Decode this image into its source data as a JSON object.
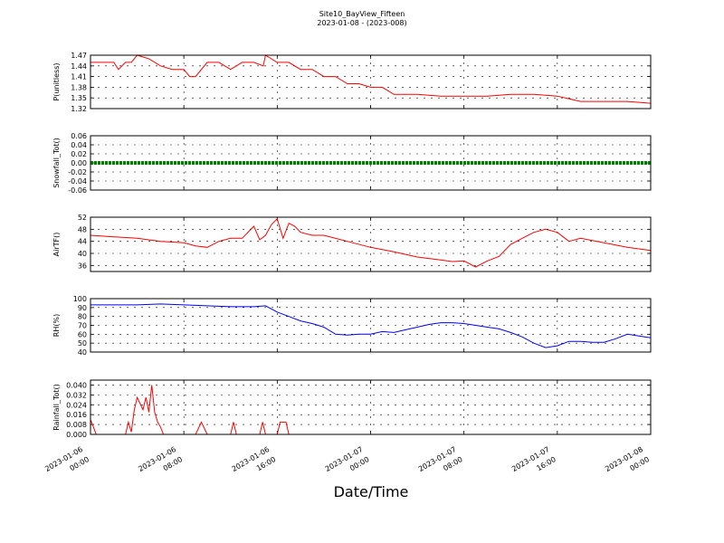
{
  "chart_data": {
    "title": "Site10_BayView_Fifteen",
    "subtitle": "2023-01-08 - (2023-008)",
    "xlabel": "Date/Time",
    "x_ticks": [
      "2023-01-06 00:00",
      "2023-01-06 08:00",
      "2023-01-06 16:00",
      "2023-01-07 00:00",
      "2023-01-07 08:00",
      "2023-01-07 16:00",
      "2023-01-08 00:00"
    ],
    "x_tick_lines": [
      [
        "2023-01-06",
        "00:00"
      ],
      [
        "2023-01-06",
        "08:00"
      ],
      [
        "2023-01-06",
        "16:00"
      ],
      [
        "2023-01-07",
        "00:00"
      ],
      [
        "2023-01-07",
        "08:00"
      ],
      [
        "2023-01-07",
        "16:00"
      ],
      [
        "2023-01-08",
        "00:00"
      ]
    ],
    "x_range_hours": [
      0,
      48
    ],
    "x_hours": [
      0,
      2,
      4,
      6,
      8,
      10,
      12,
      14,
      16,
      18,
      20,
      22,
      24,
      26,
      28,
      30,
      32,
      34,
      36,
      38,
      40,
      42,
      44,
      46,
      48
    ],
    "grid": true,
    "panels": [
      {
        "type": "line",
        "ylabel": "P(unitless)",
        "color": "#ff0000",
        "ylim": [
          1.32,
          1.47
        ],
        "yticks": [
          "1.32",
          "1.35",
          "1.38",
          "1.41",
          "1.44",
          "1.47"
        ],
        "ytick_values": [
          1.32,
          1.35,
          1.38,
          1.41,
          1.44,
          1.47
        ],
        "series": [
          {
            "x": [
              0,
              1,
              2,
              2.4,
              3,
              3.5,
              4,
              5,
              6,
              7,
              8,
              8.5,
              9,
              10,
              11,
              12,
              13,
              14,
              14.8,
              15,
              16,
              17,
              18,
              19,
              20,
              21,
              22,
              23,
              24,
              25,
              26,
              27,
              28,
              30,
              32,
              34,
              36,
              38,
              40,
              42,
              44,
              46,
              48
            ],
            "y": [
              1.45,
              1.45,
              1.45,
              1.43,
              1.45,
              1.45,
              1.47,
              1.46,
              1.44,
              1.43,
              1.43,
              1.41,
              1.41,
              1.45,
              1.45,
              1.43,
              1.45,
              1.45,
              1.44,
              1.47,
              1.45,
              1.45,
              1.43,
              1.43,
              1.41,
              1.41,
              1.39,
              1.39,
              1.38,
              1.38,
              1.36,
              1.36,
              1.36,
              1.355,
              1.355,
              1.355,
              1.36,
              1.36,
              1.355,
              1.34,
              1.34,
              1.34,
              1.335
            ]
          }
        ]
      },
      {
        "type": "line",
        "ylabel": "Snowfall_Tot()",
        "color": "#008000",
        "ylim": [
          -0.06,
          0.06
        ],
        "yticks": [
          "-0.06",
          "-0.04",
          "-0.02",
          "0.00",
          "0.02",
          "0.04",
          "0.06"
        ],
        "ytick_values": [
          -0.06,
          -0.04,
          -0.02,
          0.0,
          0.02,
          0.04,
          0.06
        ],
        "series": [
          {
            "x": [
              0,
              48
            ],
            "y": [
              0,
              0
            ]
          }
        ]
      },
      {
        "type": "line",
        "ylabel": "AirTF()",
        "color": "#ff0000",
        "ylim": [
          34,
          52
        ],
        "yticks": [
          "36",
          "40",
          "44",
          "48",
          "52"
        ],
        "ytick_values": [
          36,
          40,
          44,
          48,
          52
        ],
        "series": [
          {
            "x": [
              0,
              2,
              4,
              6,
              8,
              9,
              10,
              11,
              12,
              13,
              14,
              14.5,
              15,
              15.5,
              16,
              16.5,
              17,
              17.5,
              18,
              19,
              20,
              22,
              24,
              26,
              28,
              30,
              31,
              32,
              33,
              34,
              35,
              36,
              37,
              38,
              39,
              40,
              41,
              42,
              44,
              46,
              48
            ],
            "y": [
              46,
              45.5,
              45,
              44,
              43.5,
              42.5,
              42,
              44,
              45,
              45,
              49,
              44.5,
              46,
              49.5,
              51.5,
              45,
              50,
              49,
              47,
              46,
              46,
              44,
              42,
              40.5,
              38.8,
              37.8,
              37.3,
              37.5,
              35.5,
              37.5,
              39,
              43,
              45,
              47,
              48,
              47,
              44,
              45,
              43.5,
              42,
              41
            ]
          }
        ]
      },
      {
        "type": "line",
        "ylabel": "RH(%)",
        "color": "#0000ff",
        "ylim": [
          40,
          100
        ],
        "yticks": [
          "40",
          "50",
          "60",
          "70",
          "80",
          "90",
          "100"
        ],
        "ytick_values": [
          40,
          50,
          60,
          70,
          80,
          90,
          100
        ],
        "series": [
          {
            "x": [
              0,
              2,
              4,
              6,
              8,
              10,
              12,
              14,
              15,
              16,
              17,
              18,
              19,
              20,
              21,
              22,
              23,
              24,
              25,
              26,
              27,
              28,
              29,
              30,
              31,
              32,
              33,
              34,
              35,
              36,
              37,
              38,
              39,
              40,
              41,
              42,
              43,
              44,
              45,
              46,
              47,
              48
            ],
            "y": [
              93,
              93,
              93,
              94,
              93,
              92,
              91,
              91,
              92,
              85,
              80,
              75,
              72,
              68,
              60,
              59,
              60,
              60,
              63,
              62,
              65,
              68,
              71,
              73,
              73,
              72,
              70,
              68,
              66,
              62,
              57,
              50,
              45,
              47,
              52,
              52,
              51,
              51,
              55,
              60,
              58,
              56
            ]
          }
        ]
      },
      {
        "type": "line",
        "ylabel": "Rainfall_Tot()",
        "color": "#ff0000",
        "ylim": [
          0,
          0.044
        ],
        "yticks": [
          "0.000",
          "0.008",
          "0.016",
          "0.024",
          "0.032",
          "0.040"
        ],
        "ytick_values": [
          0,
          0.008,
          0.016,
          0.024,
          0.032,
          0.04
        ],
        "series": [
          {
            "x": [
              0,
              0.25,
              0.5,
              1,
              2,
              3,
              3.25,
              3.5,
              3.75,
              4,
              4.25,
              4.5,
              4.75,
              5,
              5.25,
              5.5,
              5.75,
              6,
              6.25,
              6.5,
              7,
              9,
              9.5,
              10,
              12,
              12.25,
              12.5,
              13,
              14.5,
              14.75,
              15,
              15.5,
              16,
              16.25,
              16.5,
              16.75,
              17,
              48
            ],
            "y": [
              0.012,
              0.006,
              0,
              0,
              0,
              0,
              0.01,
              0.002,
              0.02,
              0.03,
              0.025,
              0.02,
              0.03,
              0.018,
              0.04,
              0.018,
              0.01,
              0.006,
              0,
              0,
              0,
              0,
              0.01,
              0,
              0,
              0.01,
              0,
              0,
              0,
              0.01,
              0,
              0,
              0,
              0.01,
              0.01,
              0.01,
              0,
              0
            ]
          }
        ]
      }
    ]
  }
}
